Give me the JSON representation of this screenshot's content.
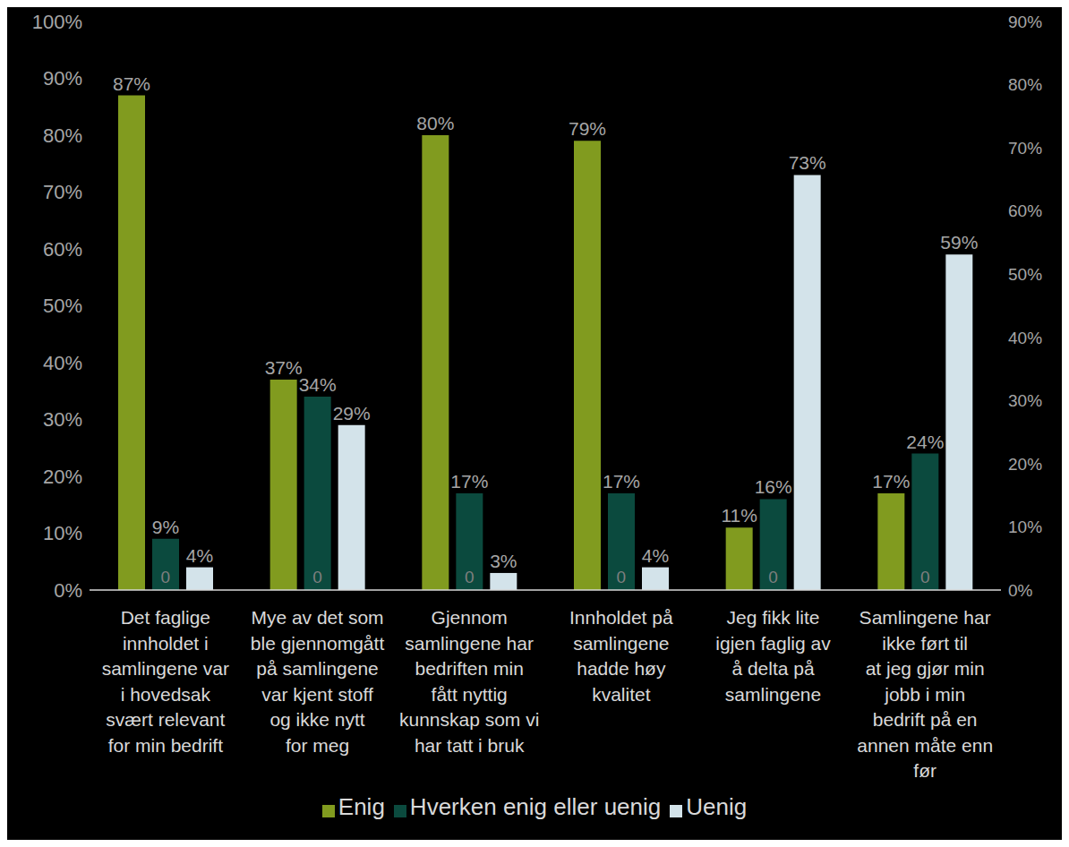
{
  "chart_data": {
    "type": "bar",
    "categories": [
      "Det faglige innholdet i samlingene var i hovedsak svært relevant for min bedrift",
      "Mye av det som ble gjennomgått på samlingene var kjent stoff og ikke nytt for meg",
      "Gjennom samlingene har bedriften min fått nyttig kunnskap som vi har tatt i bruk",
      "Innholdet på samlingene hadde høy kvalitet",
      "Jeg fikk lite igjen faglig av å delta på samlingene",
      "Samlingene har ikke ført til at jeg gjør min jobb i min bedrift på en annen måte enn før"
    ],
    "series": [
      {
        "name": "Enig",
        "color": "#819b1f",
        "values": [
          87,
          37,
          80,
          79,
          11,
          17
        ],
        "value_labels": [
          "87%",
          "37%",
          "80%",
          "79%",
          "11%",
          "17%"
        ]
      },
      {
        "name": "Hverken enig eller uenig",
        "color": "#0b4a3e",
        "values": [
          9,
          34,
          17,
          17,
          16,
          24
        ],
        "value_labels": [
          "9%",
          "34%",
          "17%",
          "17%",
          "16%",
          "24%"
        ]
      },
      {
        "name": "Uenig",
        "color": "#d3e3ea",
        "values": [
          4,
          29,
          3,
          4,
          73,
          59
        ],
        "value_labels": [
          "4%",
          "29%",
          "3%",
          "4%",
          "73%",
          "59%"
        ]
      },
      {
        "axis": "y2",
        "color": "#7f7f7f",
        "values": [
          0,
          0,
          0,
          0,
          0,
          0
        ]
      }
    ],
    "ylim": [
      0,
      100
    ],
    "yticks": [
      {
        "value": 0,
        "label": "0%"
      },
      {
        "value": 10,
        "label": "10%"
      },
      {
        "value": 20,
        "label": "20%"
      },
      {
        "value": 30,
        "label": "30%"
      },
      {
        "value": 40,
        "label": "40%"
      },
      {
        "value": 50,
        "label": "50%"
      },
      {
        "value": 60,
        "label": "60%"
      },
      {
        "value": 70,
        "label": "70%"
      },
      {
        "value": 80,
        "label": "80%"
      },
      {
        "value": 90,
        "label": "90%"
      },
      {
        "value": 100,
        "label": "100%"
      }
    ],
    "y2lim": [
      0,
      90
    ],
    "y2ticks": [
      {
        "value": 0,
        "label": "0%"
      },
      {
        "value": 10,
        "label": "10%"
      },
      {
        "value": 20,
        "label": "20%"
      },
      {
        "value": 30,
        "label": "30%"
      },
      {
        "value": 40,
        "label": "40%"
      },
      {
        "value": 50,
        "label": "50%"
      },
      {
        "value": 60,
        "label": "60%"
      },
      {
        "value": 70,
        "label": "70%"
      },
      {
        "value": 80,
        "label": "80%"
      },
      {
        "value": 90,
        "label": "90%"
      }
    ],
    "data_labels": true,
    "legend": "bottom",
    "grid": false
  }
}
